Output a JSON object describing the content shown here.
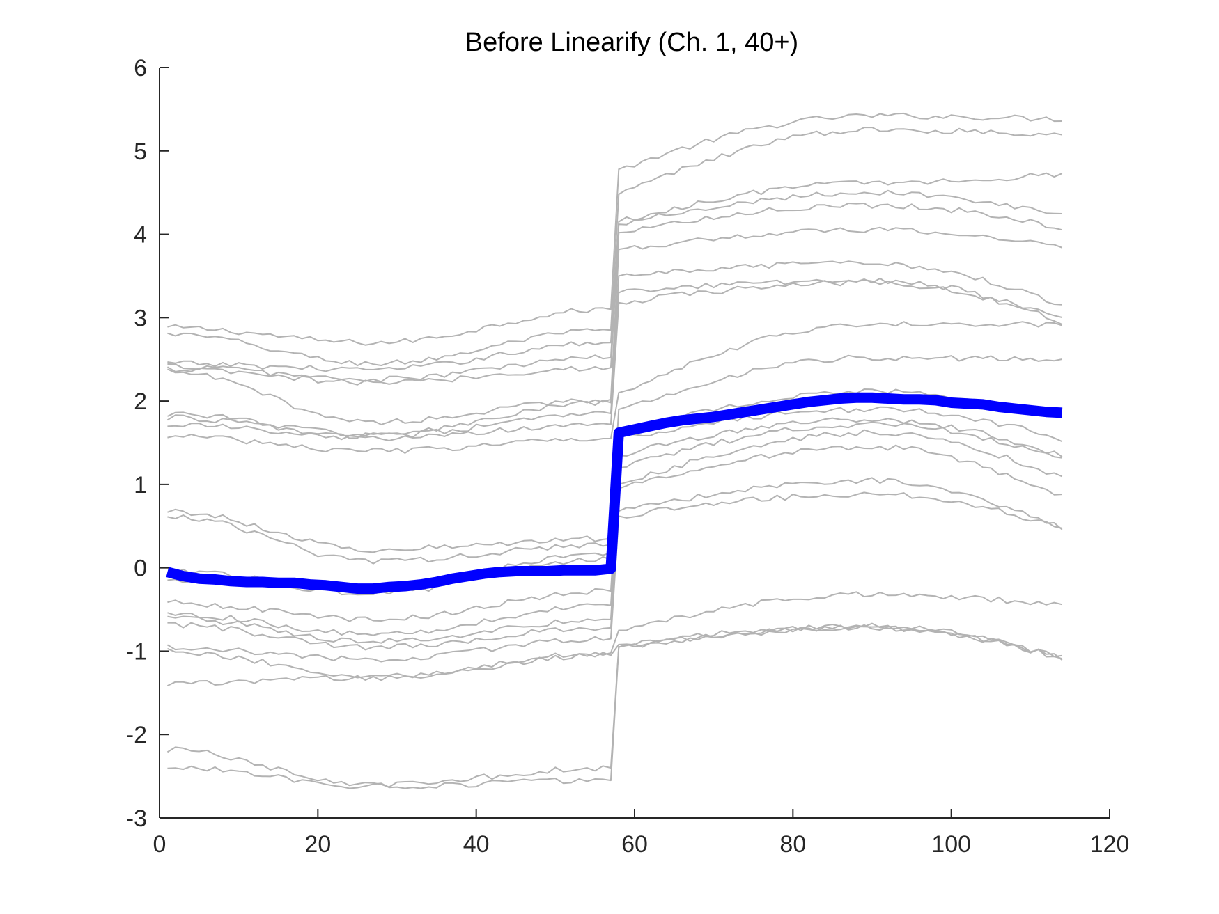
{
  "chart_data": {
    "type": "line",
    "title": "Before Linearify (Ch. 1, 40+)",
    "xlabel": "",
    "ylabel": "",
    "xlim": [
      0,
      120
    ],
    "ylim": [
      -3,
      6
    ],
    "x_ticks": [
      0,
      20,
      40,
      60,
      80,
      100,
      120
    ],
    "y_ticks": [
      -3,
      -2,
      -1,
      0,
      1,
      2,
      3,
      4,
      5,
      6
    ],
    "grid": false,
    "legend": "none",
    "colors": {
      "background_series": "#b3b3b3",
      "highlight_series": "#0000ff",
      "axis": "#262626"
    },
    "x_range": [
      1,
      114
    ],
    "step_at": [
      57,
      58
    ],
    "background_series": [
      {
        "start": 2.88,
        "min": 2.7,
        "pre_end": 3.1,
        "post_start": 4.78,
        "peak": 5.42,
        "end": 5.38
      },
      {
        "start": 2.8,
        "min": 2.45,
        "pre_end": 2.85,
        "post_start": 4.48,
        "peak": 5.25,
        "end": 5.2
      },
      {
        "start": 2.45,
        "min": 2.38,
        "pre_end": 2.7,
        "post_start": 4.15,
        "peak": 4.62,
        "end": 4.72
      },
      {
        "start": 2.42,
        "min": 2.26,
        "pre_end": 2.52,
        "post_start": 4.12,
        "peak": 4.5,
        "end": 4.22
      },
      {
        "start": 2.38,
        "min": 2.22,
        "pre_end": 2.4,
        "post_start": 4.02,
        "peak": 4.35,
        "end": 4.08
      },
      {
        "start": 2.35,
        "min": 1.75,
        "pre_end": 2.02,
        "post_start": 3.82,
        "peak": 4.05,
        "end": 3.85
      },
      {
        "start": 1.85,
        "min": 1.6,
        "pre_end": 1.98,
        "post_start": 3.5,
        "peak": 3.65,
        "end": 3.15
      },
      {
        "start": 1.8,
        "min": 1.58,
        "pre_end": 1.85,
        "post_start": 3.3,
        "peak": 3.45,
        "end": 2.98
      },
      {
        "start": 1.72,
        "min": 1.55,
        "pre_end": 1.72,
        "post_start": 3.18,
        "peak": 3.42,
        "end": 2.95
      },
      {
        "start": 1.58,
        "min": 1.4,
        "pre_end": 1.55,
        "post_start": 2.1,
        "peak": 2.92,
        "end": 2.92
      },
      {
        "start": 0.68,
        "min": 0.22,
        "pre_end": 0.35,
        "post_start": 1.9,
        "peak": 2.52,
        "end": 2.5
      },
      {
        "start": 0.62,
        "min": 0.08,
        "pre_end": 0.28,
        "post_start": 1.62,
        "peak": 2.12,
        "end": 1.8
      },
      {
        "start": -0.05,
        "min": -0.25,
        "pre_end": 0.18,
        "post_start": 1.55,
        "peak": 1.9,
        "end": 1.55
      },
      {
        "start": -0.15,
        "min": -0.3,
        "pre_end": 0.1,
        "post_start": 1.35,
        "peak": 1.78,
        "end": 1.35
      },
      {
        "start": -0.42,
        "min": -0.62,
        "pre_end": -0.28,
        "post_start": 1.2,
        "peak": 1.72,
        "end": 1.32
      },
      {
        "start": -0.55,
        "min": -0.8,
        "pre_end": -0.45,
        "post_start": 1.0,
        "peak": 1.62,
        "end": 1.08
      },
      {
        "start": -0.6,
        "min": -0.88,
        "pre_end": -0.62,
        "post_start": 0.95,
        "peak": 1.45,
        "end": 0.85
      },
      {
        "start": -0.68,
        "min": -0.95,
        "pre_end": -0.72,
        "post_start": 0.68,
        "peak": 1.05,
        "end": 0.48
      },
      {
        "start": -0.95,
        "min": -1.1,
        "pre_end": -0.85,
        "post_start": 0.62,
        "peak": 0.88,
        "end": 0.48
      },
      {
        "start": -1.0,
        "min": -1.3,
        "pre_end": -1.02,
        "post_start": -0.75,
        "peak": -0.32,
        "end": -0.45
      },
      {
        "start": -1.38,
        "min": -1.32,
        "pre_end": -1.05,
        "post_start": -0.92,
        "peak": -0.7,
        "end": -1.08
      },
      {
        "start": -2.18,
        "min": -2.6,
        "pre_end": -2.4,
        "post_start": -0.95,
        "peak": -0.72,
        "end": -1.08
      },
      {
        "start": -2.38,
        "min": -2.62,
        "pre_end": -2.55,
        "post_start": -0.95,
        "peak": -0.72,
        "end": -1.08
      }
    ],
    "highlight_series": {
      "x": [
        1,
        3,
        5,
        7,
        9,
        11,
        13,
        15,
        17,
        19,
        21,
        23,
        25,
        27,
        29,
        31,
        33,
        35,
        37,
        39,
        41,
        43,
        45,
        47,
        49,
        51,
        53,
        55,
        57,
        58,
        60,
        62,
        64,
        66,
        68,
        70,
        72,
        74,
        76,
        78,
        80,
        82,
        84,
        86,
        88,
        90,
        92,
        94,
        96,
        98,
        100,
        102,
        104,
        106,
        108,
        110,
        112,
        114
      ],
      "y": [
        -0.05,
        -0.1,
        -0.13,
        -0.14,
        -0.16,
        -0.17,
        -0.17,
        -0.18,
        -0.18,
        -0.2,
        -0.21,
        -0.23,
        -0.25,
        -0.25,
        -0.23,
        -0.22,
        -0.2,
        -0.17,
        -0.13,
        -0.1,
        -0.07,
        -0.05,
        -0.04,
        -0.04,
        -0.04,
        -0.03,
        -0.03,
        -0.03,
        -0.01,
        1.62,
        1.66,
        1.7,
        1.74,
        1.77,
        1.79,
        1.81,
        1.84,
        1.87,
        1.9,
        1.93,
        1.96,
        1.99,
        2.01,
        2.03,
        2.04,
        2.04,
        2.03,
        2.02,
        2.02,
        2.01,
        1.98,
        1.97,
        1.96,
        1.93,
        1.91,
        1.89,
        1.87,
        1.86
      ]
    }
  }
}
